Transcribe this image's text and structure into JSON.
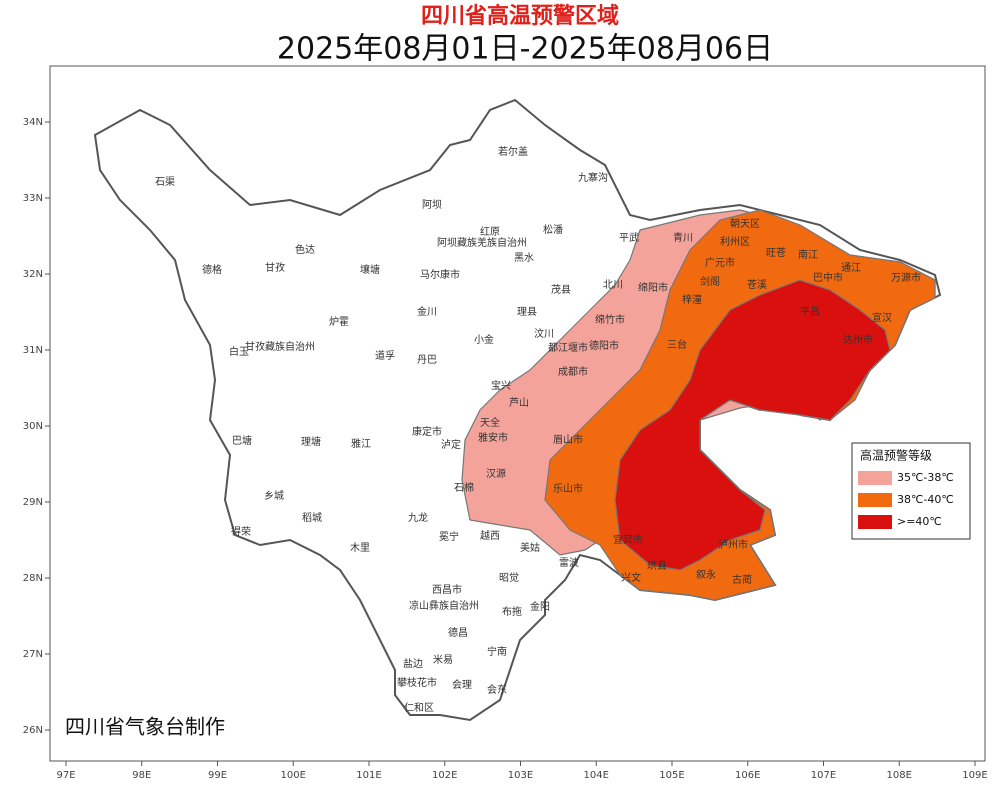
{
  "header": {
    "title": "四川省高温预警区域",
    "subtitle": "2025年08月01日-2025年08月06日"
  },
  "map": {
    "xticks": [
      {
        "value": 97,
        "label": "97E"
      },
      {
        "value": 98,
        "label": "98E"
      },
      {
        "value": 99,
        "label": "99E"
      },
      {
        "value": 100,
        "label": "100E"
      },
      {
        "value": 101,
        "label": "101E"
      },
      {
        "value": 102,
        "label": "102E"
      },
      {
        "value": 103,
        "label": "103E"
      },
      {
        "value": 104,
        "label": "104E"
      },
      {
        "value": 105,
        "label": "105E"
      },
      {
        "value": 106,
        "label": "106E"
      },
      {
        "value": 107,
        "label": "107E"
      },
      {
        "value": 108,
        "label": "108E"
      },
      {
        "value": 109,
        "label": "109E"
      }
    ],
    "yticks": [
      {
        "value": 34,
        "label": "34N"
      },
      {
        "value": 33,
        "label": "33N"
      },
      {
        "value": 32,
        "label": "32N"
      },
      {
        "value": 31,
        "label": "31N"
      },
      {
        "value": 30,
        "label": "30N"
      },
      {
        "value": 29,
        "label": "29N"
      },
      {
        "value": 28,
        "label": "28N"
      },
      {
        "value": 27,
        "label": "27N"
      },
      {
        "value": 26,
        "label": "26N"
      }
    ],
    "places": [
      "石渠",
      "若尔盖",
      "九寨沟",
      "阿坝",
      "红原",
      "松潘",
      "平武",
      "青川",
      "朝天区",
      "利州区",
      "旺苍",
      "南江",
      "德格",
      "色达",
      "甘孜",
      "壤塘",
      "阿坝藏族羌族自治州",
      "马尔康市",
      "黑水",
      "广元市",
      "巴中市",
      "通江",
      "万源市",
      "北川",
      "茂县",
      "金川",
      "理县",
      "绵阳市",
      "剑阁",
      "苍溪",
      "炉霍",
      "汶川",
      "小金",
      "绵竹市",
      "梓潼",
      "平昌",
      "宣汉",
      "白玉",
      "甘孜藏族自治州",
      "道孚",
      "丹巴",
      "都江堰市",
      "德阳市",
      "三台",
      "达州市",
      "成都市",
      "宝兴",
      "芦山",
      "天全",
      "雅安市",
      "眉山市",
      "巴塘",
      "理塘",
      "雅江",
      "康定市",
      "泸定",
      "乐山市",
      "石棉",
      "汉源",
      "乡城",
      "稻城",
      "九龙",
      "得荣",
      "木里",
      "冕宁",
      "越西",
      "美姑",
      "雷波",
      "西昌市",
      "昭觉",
      "凉山彝族自治州",
      "布拖",
      "金阳",
      "德昌",
      "宁南",
      "米易",
      "会理",
      "会东",
      "盐边",
      "攀枝花市",
      "仁和区",
      "宜宾市",
      "泸州市",
      "珙县",
      "叙永",
      "古蔺",
      "兴文"
    ]
  },
  "legend": {
    "title": "高温预警等级",
    "items": [
      {
        "label": "35℃-38℃",
        "color": "#f4a39b"
      },
      {
        "label": "38℃-40℃",
        "color": "#f26a0f"
      },
      {
        "label": ">=40℃",
        "color": "#d9100e"
      }
    ]
  },
  "footer": "四川省气象台制作"
}
